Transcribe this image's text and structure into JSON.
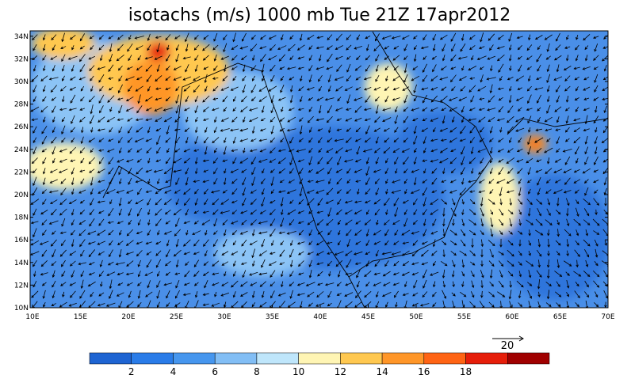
{
  "title": "isotachs (m/s) 1000 mb Tue 21Z 17apr2012",
  "lat_labels": [
    "10N",
    "12N",
    "14N",
    "16N",
    "18N",
    "20N",
    "22N",
    "24N",
    "26N",
    "28N",
    "30N",
    "32N",
    "34N"
  ],
  "lon_labels": [
    "10E",
    "15E",
    "20E",
    "25E",
    "30E",
    "35E",
    "40E",
    "45E",
    "50E",
    "55E",
    "60E",
    "65E",
    "70E"
  ],
  "reference_vector": "20",
  "colorbar": {
    "labels": [
      "2",
      "4",
      "6",
      "8",
      "10",
      "12",
      "14",
      "16",
      "18"
    ],
    "colors": [
      "#1e64d2",
      "#2a7ce8",
      "#4696ee",
      "#82bef5",
      "#bfe6fb",
      "#fff5b4",
      "#ffc850",
      "#ff9628",
      "#ff6414",
      "#e61e0a",
      "#a00000"
    ]
  }
}
